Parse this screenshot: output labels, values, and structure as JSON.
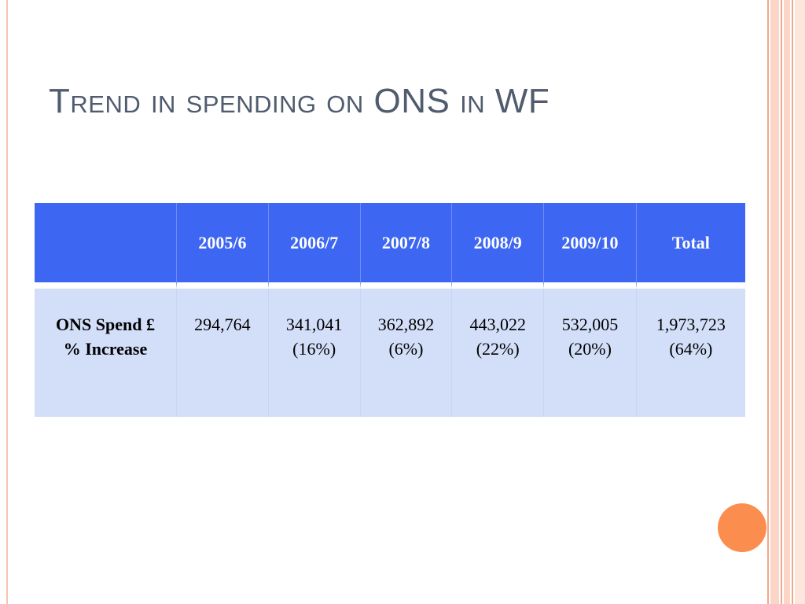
{
  "slide": {
    "title": "Trend in spending on ONS in WF"
  },
  "table": {
    "headers": [
      "",
      "2005/6",
      "2006/7",
      "2007/8",
      "2008/9",
      "2009/10",
      "Total"
    ],
    "row": {
      "label_line1": "ONS Spend £",
      "label_line2": "% Increase",
      "cells": [
        {
          "spend": "294,764",
          "increase": ""
        },
        {
          "spend": "341,041",
          "increase": "(16%)"
        },
        {
          "spend": "362,892",
          "increase": "(6%)"
        },
        {
          "spend": "443,022",
          "increase": "(22%)"
        },
        {
          "spend": "532,005",
          "increase": "(20%)"
        },
        {
          "spend": "1,973,723",
          "increase": "(64%)"
        }
      ]
    }
  },
  "colors": {
    "header_bg": "#3d66f2",
    "row_bg": "#d3def9",
    "title": "#505c6e",
    "accent_dot": "#fb8e4f"
  }
}
